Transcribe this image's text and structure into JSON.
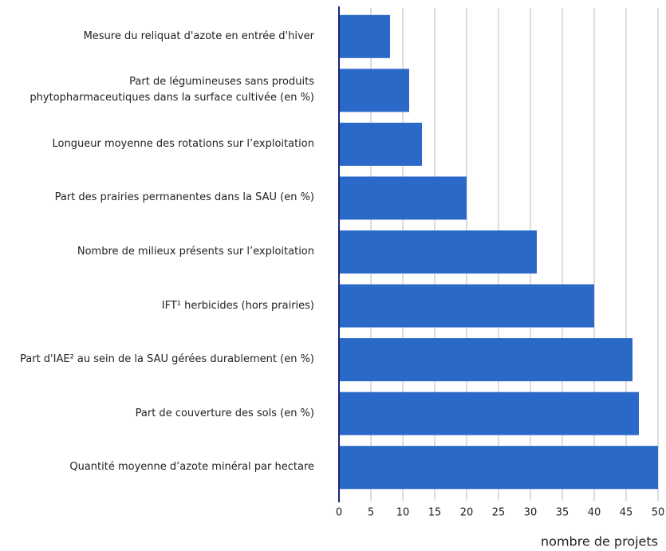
{
  "chart_data": {
    "type": "bar",
    "orientation": "horizontal",
    "categories": [
      "Mesure du reliquat d'azote en entrée d'hiver",
      "Part de légumineuses sans produits\nphytopharmaceutiques dans la surface cultivée (en %)",
      "Longueur moyenne des rotations sur l’exploitation",
      "Part des prairies permanentes dans la SAU (en %)",
      "Nombre de milieux présents sur l’exploitation",
      "IFT¹ herbicides (hors prairies)",
      "Part d'IAE² au sein de la SAU gérées durablement (en %)",
      "Part de couverture des sols (en %)",
      "Quantité moyenne d’azote minéral par hectare"
    ],
    "values": [
      8,
      11,
      13,
      20,
      31,
      40,
      46,
      47,
      50
    ],
    "color": "#2a69c8",
    "xlim": [
      0,
      50
    ],
    "xticks": [
      0,
      5,
      10,
      15,
      20,
      25,
      30,
      35,
      40,
      45,
      50
    ],
    "x_label": "nombre de projets",
    "grid": true
  }
}
